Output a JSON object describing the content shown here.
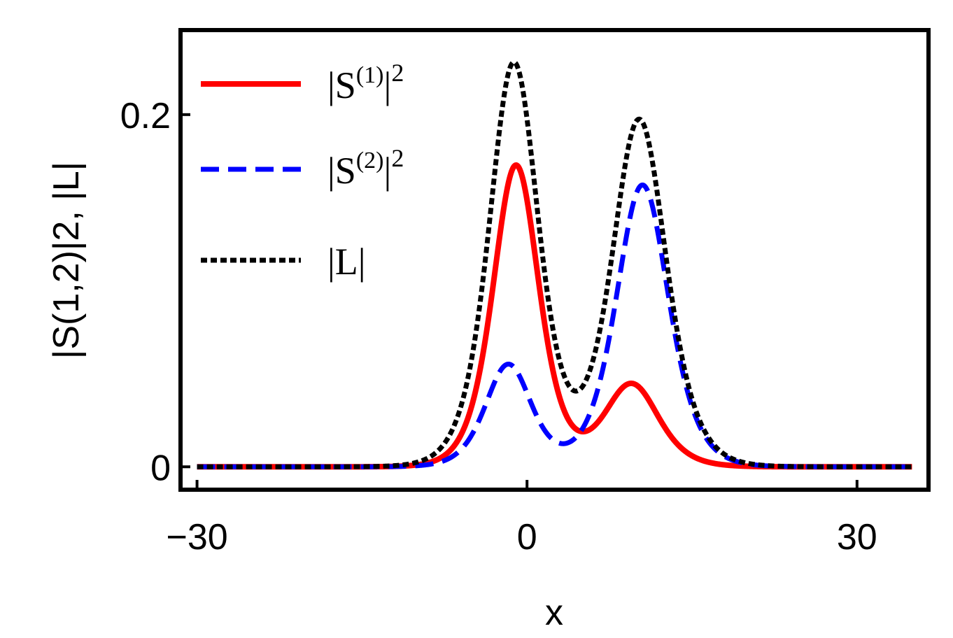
{
  "chart_data": {
    "type": "line",
    "title": "",
    "xlabel": "x",
    "ylabel": "|S(1,2)|2, |L|",
    "xlim": [
      -31.5,
      36.5
    ],
    "ylim": [
      -0.013,
      0.248
    ],
    "xticks": [
      {
        "value": -30,
        "label": "−30"
      },
      {
        "value": 0,
        "label": "0"
      },
      {
        "value": 30,
        "label": "30"
      }
    ],
    "yticks": [
      {
        "value": 0,
        "label": "0"
      },
      {
        "value": 0.2,
        "label": "0.2"
      }
    ],
    "x_domain": [
      -30,
      35
    ],
    "grid": false,
    "legend_position": "top-left",
    "series": [
      {
        "name": "|S(1)|2",
        "legend_label": "|S",
        "legend_sup": "(1)",
        "legend_tail": "|",
        "legend_power": "2",
        "color": "#ff0000",
        "style": "solid",
        "peaks": [
          {
            "center": -1.0,
            "amplitude": 0.171,
            "width": 2.8
          },
          {
            "center": 9.5,
            "amplitude": 0.047,
            "width": 3.3
          }
        ]
      },
      {
        "name": "|S(2)|2",
        "legend_label": "|S",
        "legend_sup": "(2)",
        "legend_tail": "|",
        "legend_power": "2",
        "color": "#0000ff",
        "style": "dashed",
        "peaks": [
          {
            "center": -1.7,
            "amplitude": 0.058,
            "width": 2.8
          },
          {
            "center": 10.5,
            "amplitude": 0.16,
            "width": 3.2
          }
        ]
      },
      {
        "name": "|L|",
        "legend_label": "|L|",
        "legend_sup": "",
        "legend_tail": "",
        "legend_power": "",
        "color": "#000000",
        "style": "dotted",
        "peaks": [
          {
            "center": -1.2,
            "amplitude": 0.229,
            "width": 3.0
          },
          {
            "center": 10.2,
            "amplitude": 0.197,
            "width": 3.3
          }
        ]
      }
    ]
  }
}
